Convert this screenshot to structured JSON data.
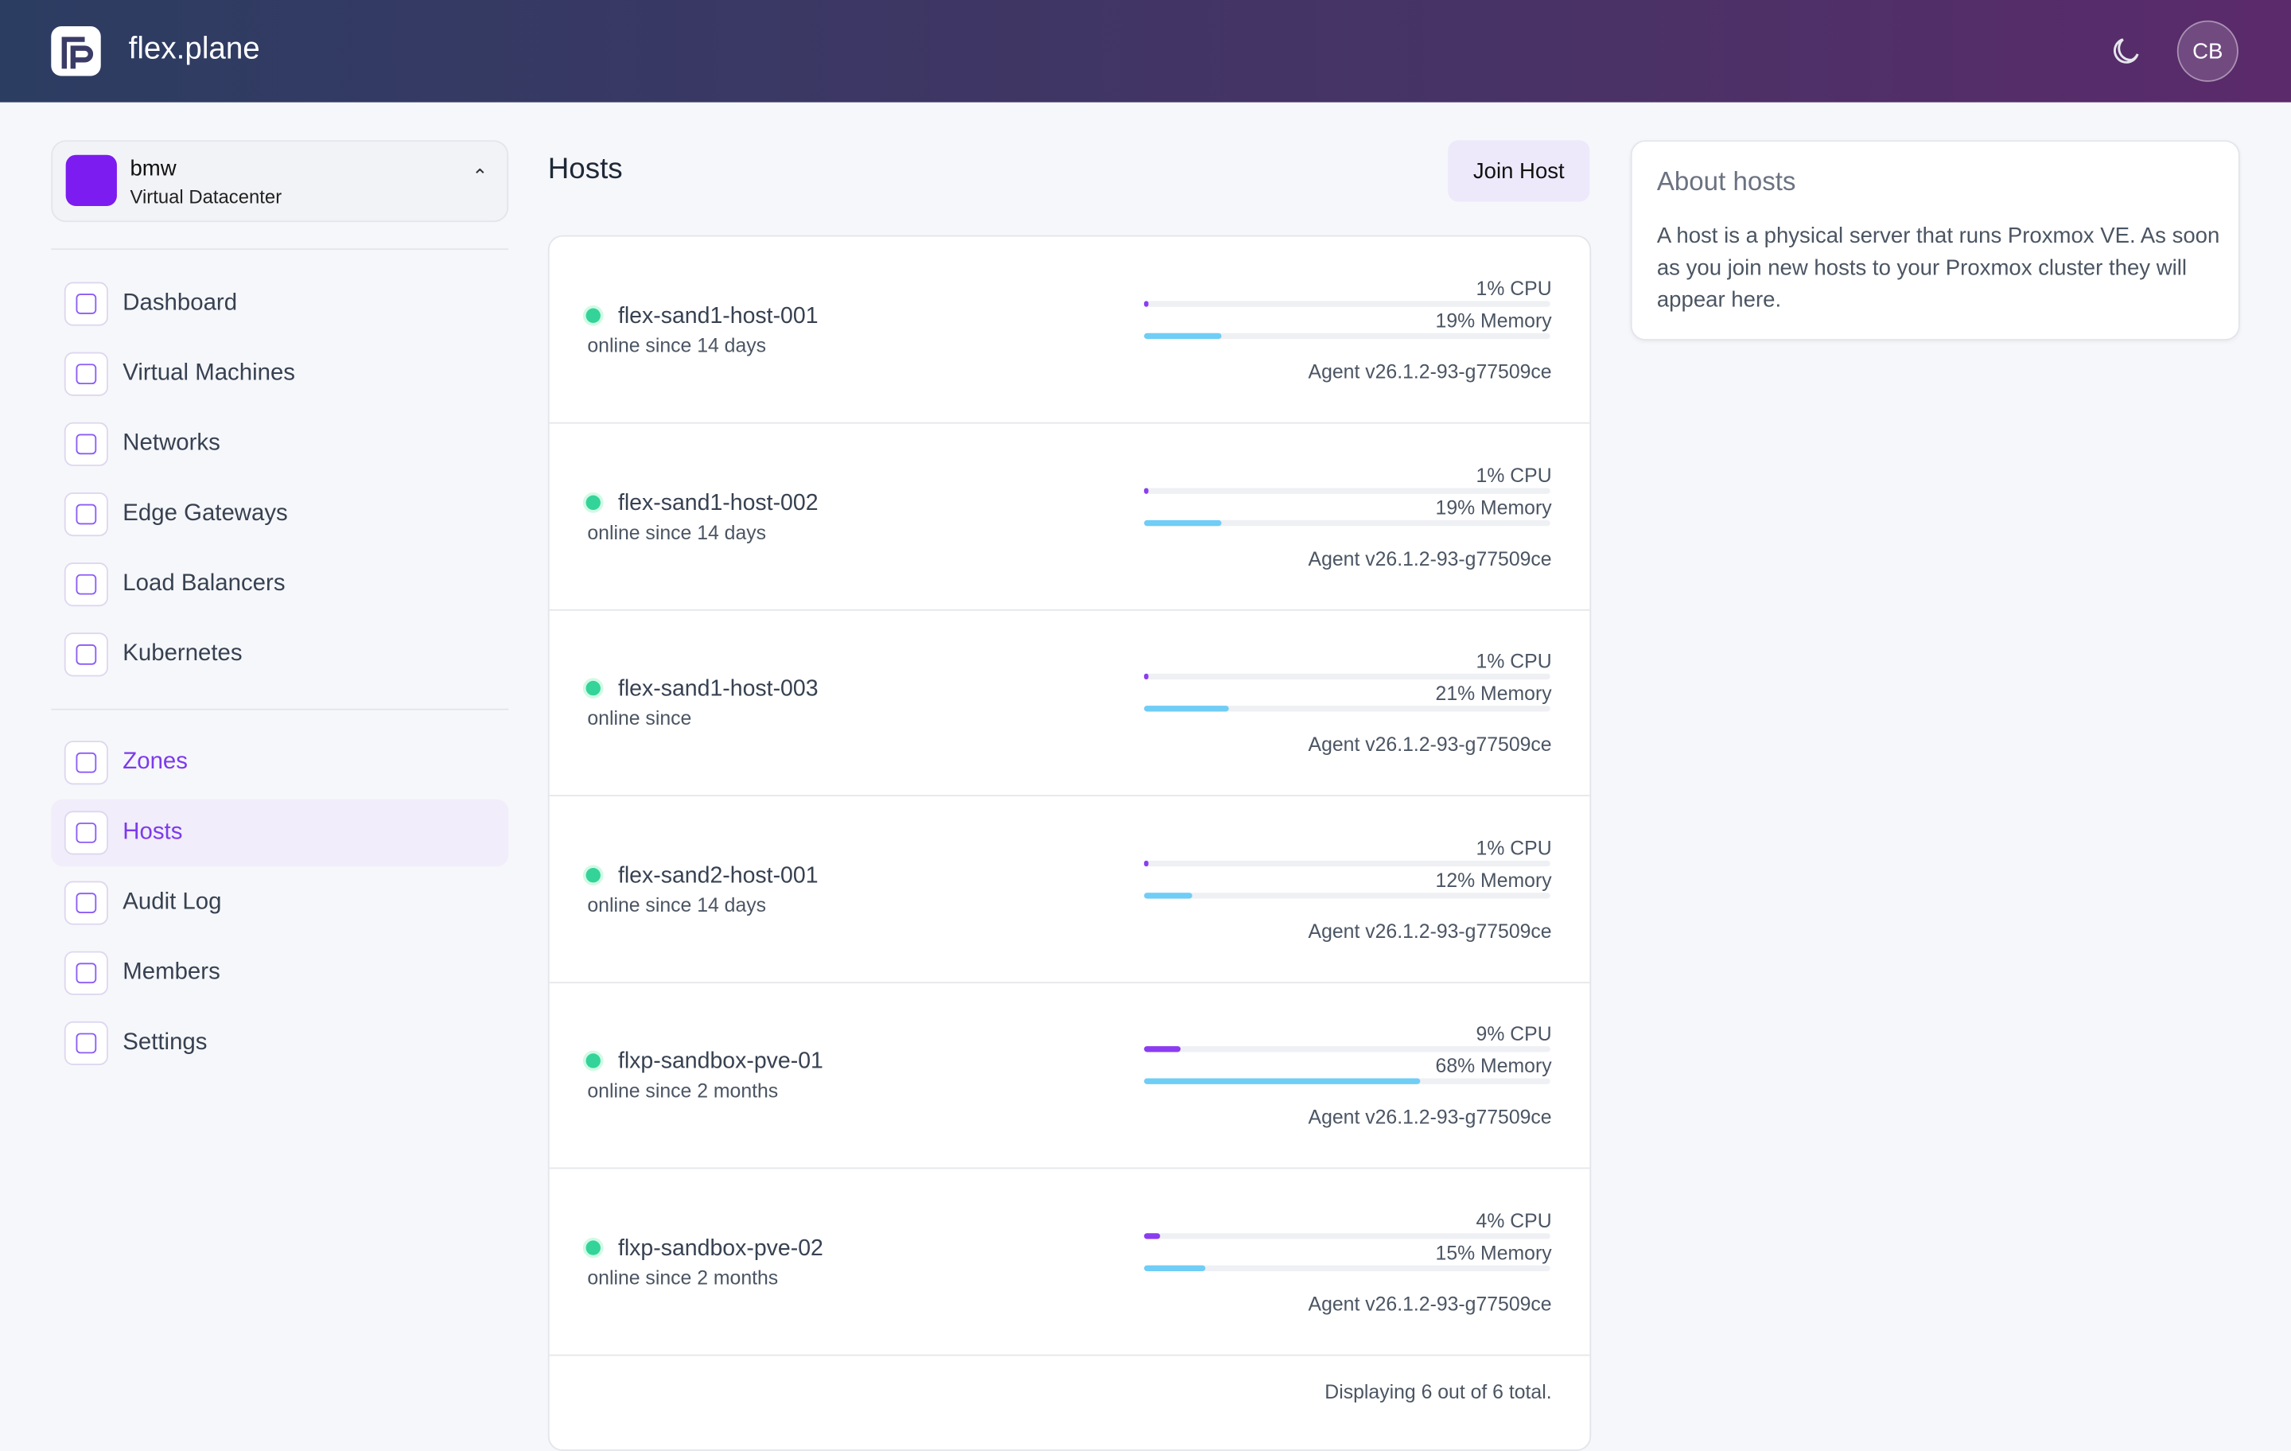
{
  "header": {
    "brand": "flex.plane",
    "user_initials": "CB"
  },
  "org": {
    "name": "bmw",
    "type": "Virtual Datacenter"
  },
  "nav": {
    "primary": [
      "Dashboard",
      "Virtual Machines",
      "Networks",
      "Edge Gateways",
      "Load Balancers",
      "Kubernetes"
    ],
    "secondary": [
      "Zones",
      "Hosts",
      "Audit Log",
      "Members",
      "Settings"
    ]
  },
  "page": {
    "title": "Hosts",
    "button": "Join Host"
  },
  "hosts": [
    {
      "name": "flex-sand1-host-001",
      "status": "online since 14 days",
      "cpu": {
        "value": 1,
        "label": "1% CPU"
      },
      "memory": {
        "value": 19,
        "label": "19% Memory"
      },
      "agent": "Agent v26.1.2-93-g77509ce"
    },
    {
      "name": "flex-sand1-host-002",
      "status": "online since 14 days",
      "cpu": {
        "value": 1,
        "label": "1% CPU"
      },
      "memory": {
        "value": 19,
        "label": "19% Memory"
      },
      "agent": "Agent v26.1.2-93-g77509ce"
    },
    {
      "name": "flex-sand1-host-003",
      "status": "online since",
      "cpu": {
        "value": 1,
        "label": "1% CPU"
      },
      "memory": {
        "value": 21,
        "label": "21% Memory"
      },
      "agent": "Agent v26.1.2-93-g77509ce"
    },
    {
      "name": "flex-sand2-host-001",
      "status": "online since 14 days",
      "cpu": {
        "value": 1,
        "label": "1% CPU"
      },
      "memory": {
        "value": 12,
        "label": "12% Memory"
      },
      "agent": "Agent v26.1.2-93-g77509ce"
    },
    {
      "name": "flxp-sandbox-pve-01",
      "status": "online since 2 months",
      "cpu": {
        "value": 9,
        "label": "9% CPU"
      },
      "memory": {
        "value": 68,
        "label": "68% Memory"
      },
      "agent": "Agent v26.1.2-93-g77509ce"
    },
    {
      "name": "flxp-sandbox-pve-02",
      "status": "online since 2 months",
      "cpu": {
        "value": 4,
        "label": "4% CPU"
      },
      "memory": {
        "value": 15,
        "label": "15% Memory"
      },
      "agent": "Agent v26.1.2-93-g77509ce"
    }
  ],
  "footer": "Displaying 6 out of 6 total.",
  "about": {
    "title": "About hosts",
    "text": "A host is a physical server that runs Proxmox VE. As soon as you join new hosts to your Proxmox cluster they will appear here."
  }
}
